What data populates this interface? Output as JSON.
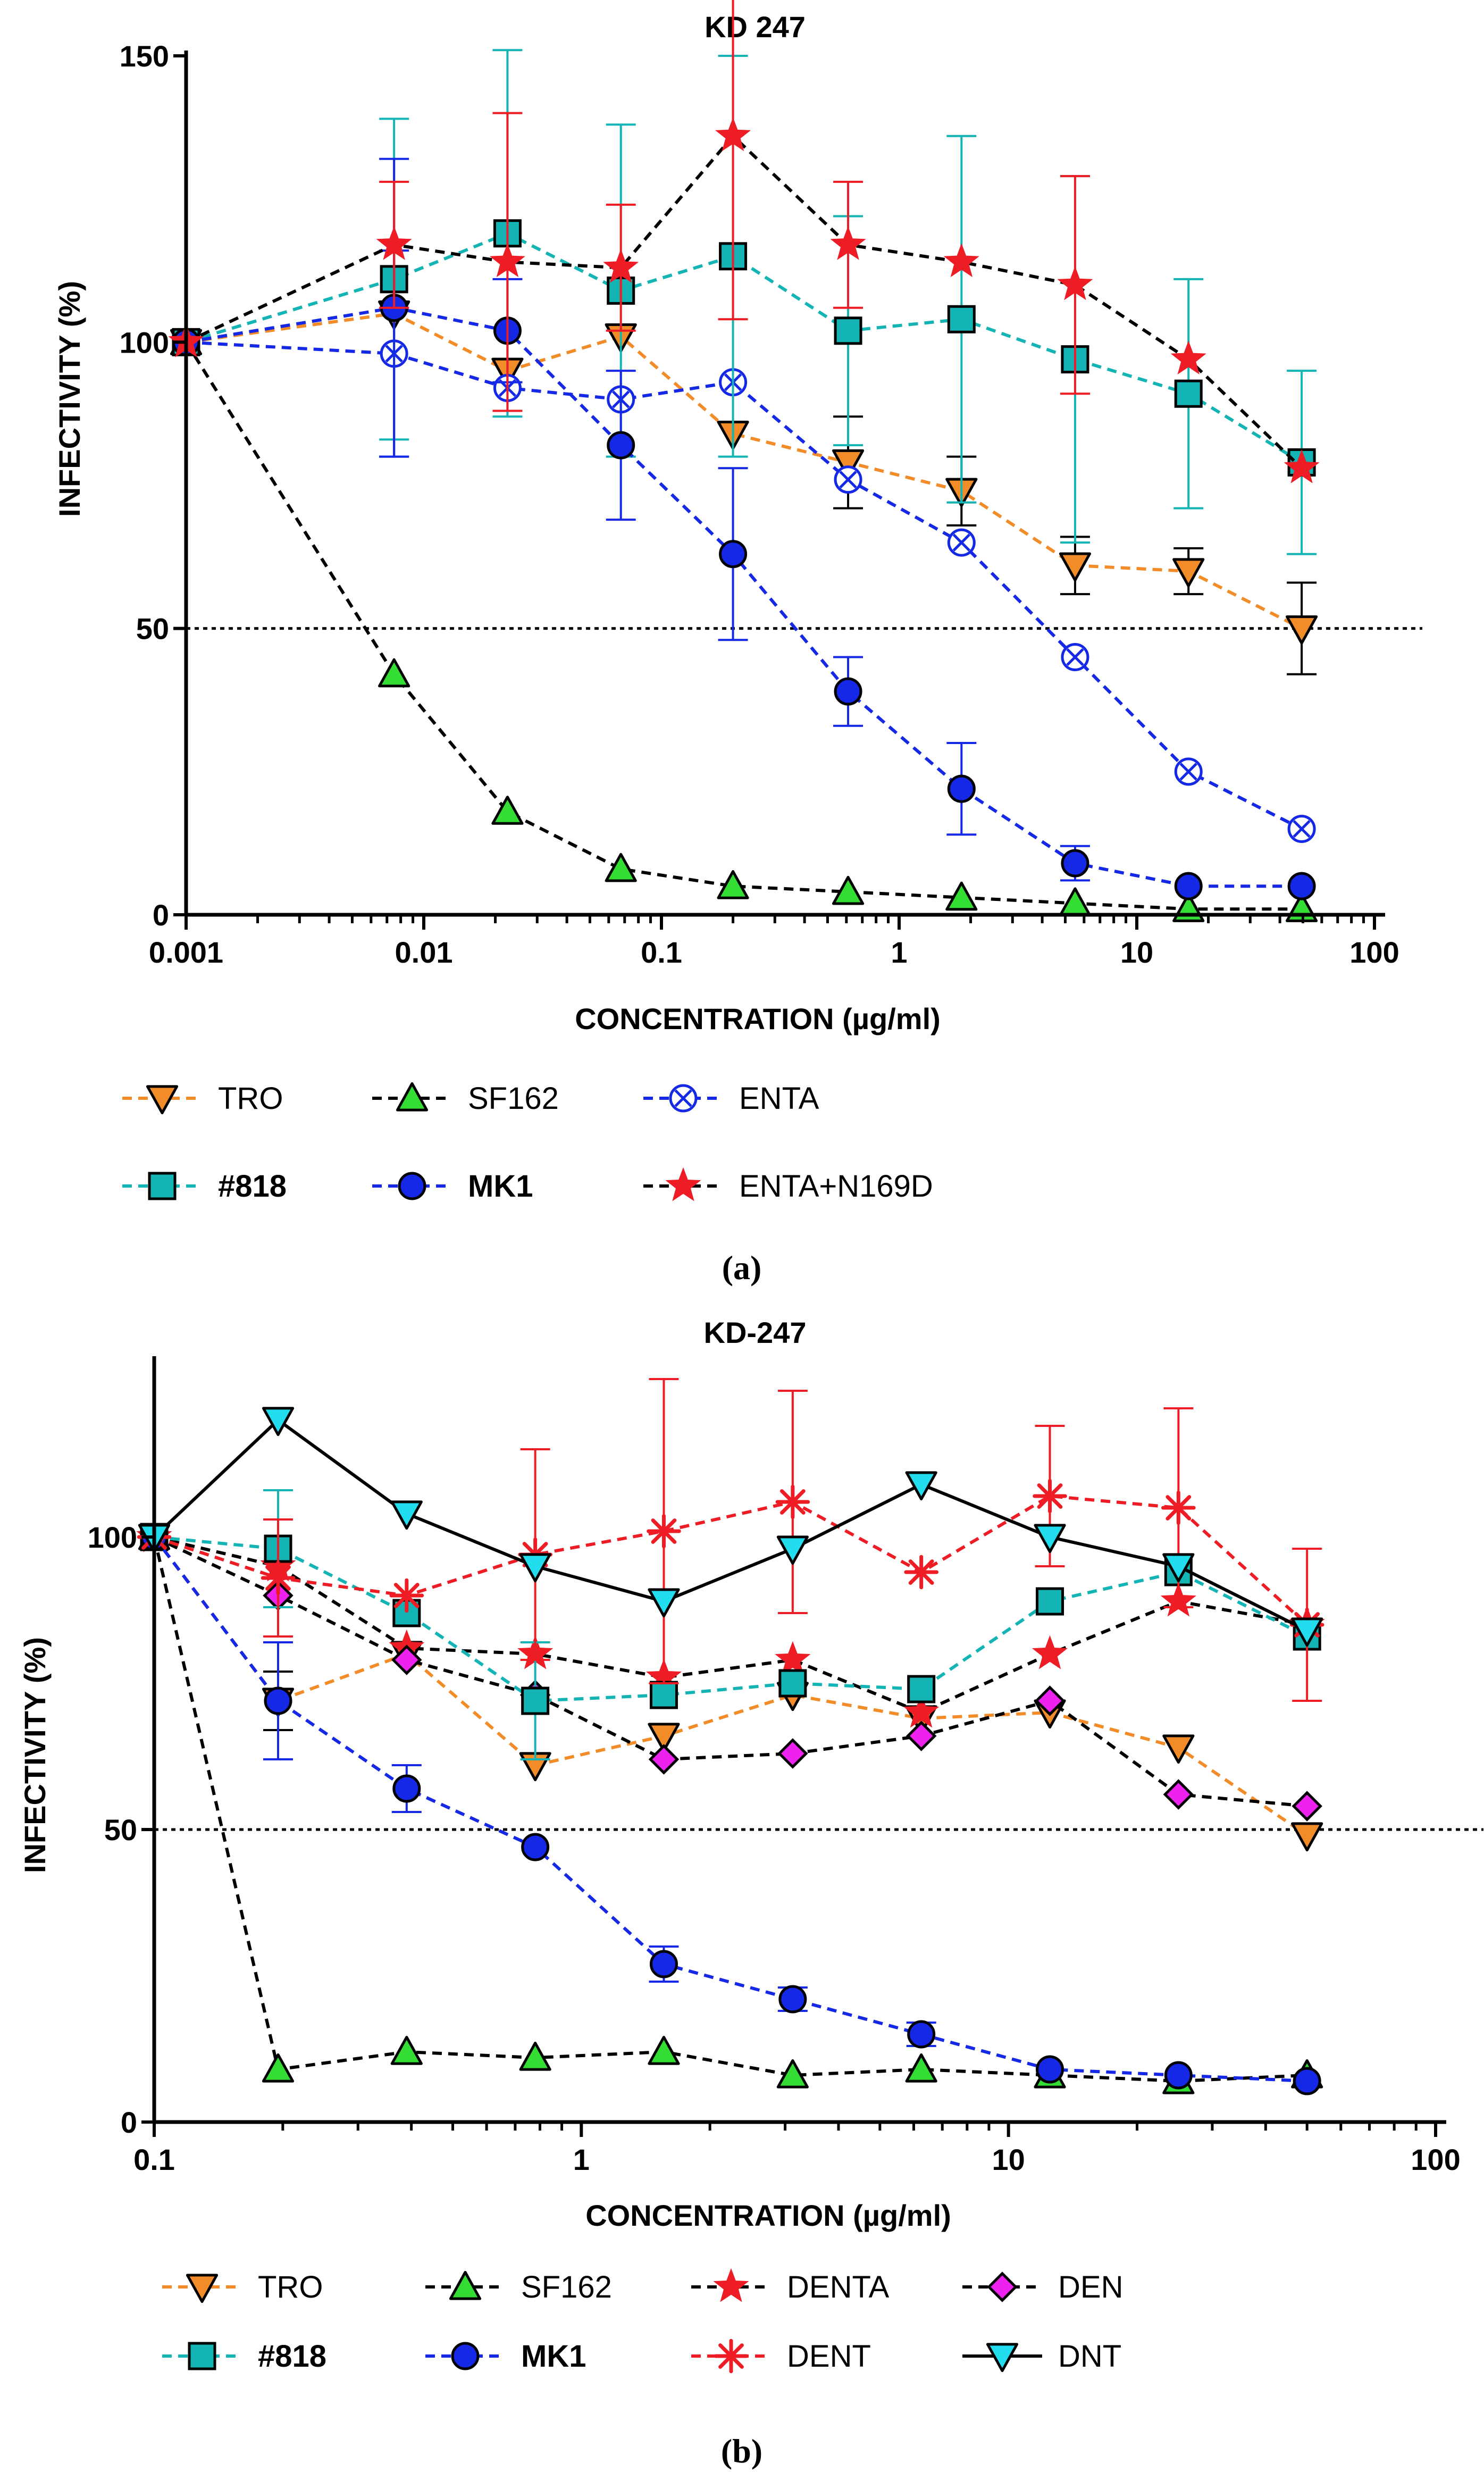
{
  "colors": {
    "TRO": "#f28c28",
    "SF162": "#33dd33",
    "ENTA": "#1428e6",
    "N818": "#14b4b4",
    "MK1": "#1428e6",
    "ENTA_N169D": "#ee1c24",
    "DENTA": "#ee1c24",
    "DEN": "#ee22ee",
    "DENT": "#ee1c24",
    "DNT": "#22ddee"
  },
  "chart_data": [
    {
      "panel_label": "(a)",
      "type": "line",
      "title": "KD 247",
      "xlabel": "CONCENTRATION (µg/ml)",
      "ylabel": "INFECTIVITY (%)",
      "xscale": "log",
      "xlim": [
        0.001,
        100
      ],
      "ylim": [
        0,
        150
      ],
      "x_ticks": [
        0.001,
        0.01,
        0.1,
        1,
        10,
        100
      ],
      "x_tick_labels": [
        "0.001",
        "0.01",
        "0.1",
        "1",
        "10",
        "100"
      ],
      "y_ticks": [
        0,
        50,
        100,
        150
      ],
      "y_tick_labels": [
        "0",
        "50",
        "100",
        "150"
      ],
      "reference_line": 50,
      "x": [
        0.001,
        0.0075,
        0.0225,
        0.0675,
        0.2,
        0.61,
        1.83,
        5.5,
        16.5,
        49.4
      ],
      "series": [
        {
          "name": "TRO",
          "key": "TRO",
          "marker": "tri-down",
          "bold": false,
          "values": [
            100,
            105,
            95,
            101,
            84,
            79,
            74,
            61,
            60,
            50
          ],
          "err": [
            0,
            0,
            0,
            0,
            0,
            8,
            6,
            5,
            4,
            8
          ]
        },
        {
          "name": "SF162",
          "key": "SF162",
          "marker": "tri-up",
          "bold": false,
          "values": [
            100,
            42,
            18,
            8,
            5,
            4,
            3,
            2,
            1,
            1
          ],
          "err": [
            0,
            0,
            0,
            0,
            0,
            0,
            0,
            0,
            0,
            0
          ]
        },
        {
          "name": "ENTA",
          "key": "ENTA",
          "marker": "circle-x",
          "bold": false,
          "values": [
            100,
            98,
            92,
            90,
            93,
            76,
            65,
            45,
            25,
            15
          ],
          "err": [
            0,
            18,
            0,
            0,
            0,
            0,
            0,
            0,
            0,
            0
          ]
        },
        {
          "name": "#818",
          "key": "N818",
          "marker": "square",
          "bold": true,
          "values": [
            100,
            111,
            119,
            109,
            115,
            102,
            104,
            97,
            91,
            79
          ],
          "err": [
            0,
            28,
            32,
            29,
            35,
            20,
            32,
            32,
            20,
            16
          ]
        },
        {
          "name": "MK1",
          "key": "MK1",
          "marker": "circle",
          "bold": true,
          "values": [
            100,
            106,
            102,
            82,
            63,
            39,
            22,
            9,
            5,
            5
          ],
          "err": [
            0,
            26,
            9,
            13,
            15,
            6,
            8,
            3,
            0,
            0
          ]
        },
        {
          "name": "ENTA+N169D",
          "key": "ENTA_N169D",
          "marker": "star",
          "bold": false,
          "values": [
            100,
            117,
            114,
            113,
            136,
            117,
            114,
            110,
            97,
            78
          ],
          "err": [
            0,
            11,
            26,
            11,
            32,
            11,
            0,
            19,
            0,
            0
          ]
        }
      ],
      "legend": [
        [
          "TRO",
          "SF162",
          "ENTA"
        ],
        [
          "#818",
          "MK1",
          "ENTA+N169D"
        ]
      ]
    },
    {
      "panel_label": "(b)",
      "type": "line",
      "title": "KD-247",
      "xlabel": "CONCENTRATION (µg/ml)",
      "ylabel": "INFECTIVITY (%)",
      "xscale": "log",
      "xlim": [
        0.1,
        100
      ],
      "ylim": [
        0,
        130
      ],
      "x_ticks": [
        0.1,
        1,
        10,
        100
      ],
      "x_tick_labels": [
        "0.1",
        "1",
        "10",
        "100"
      ],
      "y_ticks": [
        0,
        50,
        100
      ],
      "y_tick_labels": [
        "0",
        "50",
        "100"
      ],
      "reference_line": 50,
      "x": [
        0.1,
        0.195,
        0.39,
        0.78,
        1.56,
        3.125,
        6.25,
        12.5,
        25,
        50
      ],
      "series": [
        {
          "name": "TRO",
          "key": "TRO",
          "marker": "tri-down",
          "bold": false,
          "values": [
            100,
            72,
            80,
            61,
            66,
            73,
            69,
            70,
            64,
            49
          ],
          "err": [
            0,
            5,
            0,
            0,
            0,
            0,
            0,
            0,
            0,
            0
          ]
        },
        {
          "name": "SF162",
          "key": "SF162",
          "marker": "tri-up",
          "bold": false,
          "values": [
            100,
            9,
            12,
            11,
            12,
            8,
            9,
            8,
            7,
            8
          ],
          "err": [
            0,
            0,
            0,
            0,
            0,
            0,
            0,
            0,
            0,
            0
          ]
        },
        {
          "name": "DENTA",
          "key": "DENTA",
          "marker": "star",
          "bold": false,
          "values": [
            100,
            95,
            81,
            80,
            76,
            79,
            70,
            80,
            89,
            85
          ],
          "err": [
            0,
            0,
            0,
            0,
            0,
            0,
            0,
            0,
            0,
            0
          ]
        },
        {
          "name": "DEN",
          "key": "DEN",
          "marker": "diamond",
          "bold": false,
          "values": [
            100,
            90,
            79,
            73,
            62,
            63,
            66,
            72,
            56,
            54
          ],
          "err": [
            0,
            0,
            0,
            0,
            0,
            0,
            0,
            0,
            0,
            0
          ]
        },
        {
          "name": "#818",
          "key": "N818",
          "marker": "square",
          "bold": true,
          "values": [
            100,
            98,
            87,
            72,
            73,
            75,
            74,
            89,
            94,
            83
          ],
          "err": [
            0,
            10,
            0,
            10,
            0,
            0,
            0,
            0,
            0,
            0
          ]
        },
        {
          "name": "MK1",
          "key": "MK1",
          "marker": "circle",
          "bold": true,
          "values": [
            100,
            72,
            57,
            47,
            27,
            21,
            15,
            9,
            8,
            7
          ],
          "err": [
            0,
            10,
            4,
            0,
            3,
            2,
            2,
            0,
            0,
            0
          ]
        },
        {
          "name": "DENT",
          "key": "DENT",
          "marker": "asterisk",
          "bold": false,
          "values": [
            100,
            93,
            90,
            97,
            101,
            106,
            94,
            107,
            105,
            85
          ],
          "err": [
            0,
            10,
            0,
            18,
            26,
            19,
            0,
            12,
            17,
            13
          ]
        },
        {
          "name": "DNT",
          "key": "DNT",
          "marker": "tri-down",
          "bold": false,
          "values": [
            100,
            120,
            104,
            95,
            89,
            98,
            109,
            100,
            95,
            84
          ],
          "err": [
            0,
            0,
            0,
            0,
            0,
            0,
            0,
            0,
            0,
            0
          ]
        }
      ],
      "legend": [
        [
          "TRO",
          "SF162",
          "DENTA",
          "DEN"
        ],
        [
          "#818",
          "MK1",
          "DENT",
          "DNT"
        ]
      ]
    }
  ]
}
